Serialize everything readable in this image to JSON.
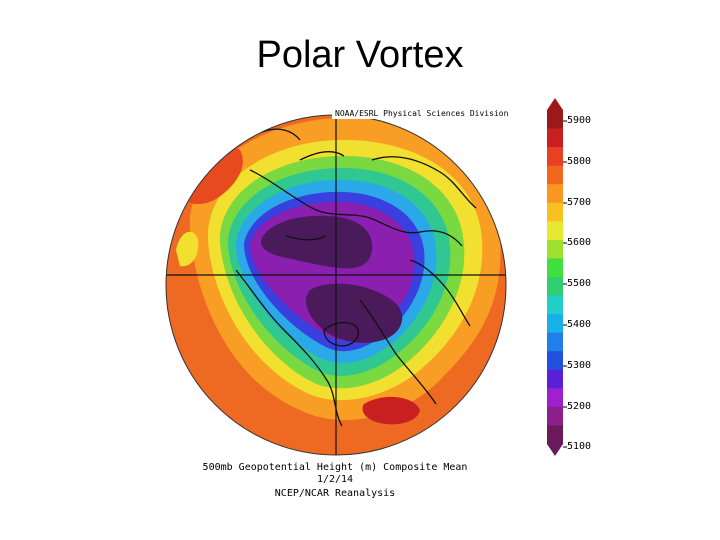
{
  "slide": {
    "title": "Polar Vortex"
  },
  "map": {
    "credit": "NOAA/ESRL Physical Sciences Division",
    "caption": {
      "line1": "500mb Geopotential Height (m) Composite Mean",
      "line2": "1/2/14",
      "line3": "NCEP/NCAR Reanalysis"
    },
    "colorbar": {
      "labels": [
        "5900",
        "5800",
        "5700",
        "5600",
        "5500",
        "5400",
        "5300",
        "5200",
        "5100"
      ],
      "colors": [
        "#6b1a5e",
        "#8d1f8a",
        "#a020d0",
        "#5a20d8",
        "#2050e0",
        "#2080e8",
        "#18b0e8",
        "#20d0c8",
        "#30d070",
        "#40e040",
        "#a0e030",
        "#e8e830",
        "#f8c020",
        "#f89820",
        "#f06820",
        "#e84020",
        "#c82020",
        "#9a1a1a"
      ]
    },
    "palette": {
      "deep_purple": "#4a1a5a",
      "purple": "#8a1fb0",
      "blue": "#3a3ae0",
      "cyan": "#20b8e8",
      "green": "#30d060",
      "yellow": "#f0e030",
      "orange": "#f8a020",
      "red_orange": "#ee6a22",
      "red": "#d83020"
    }
  }
}
